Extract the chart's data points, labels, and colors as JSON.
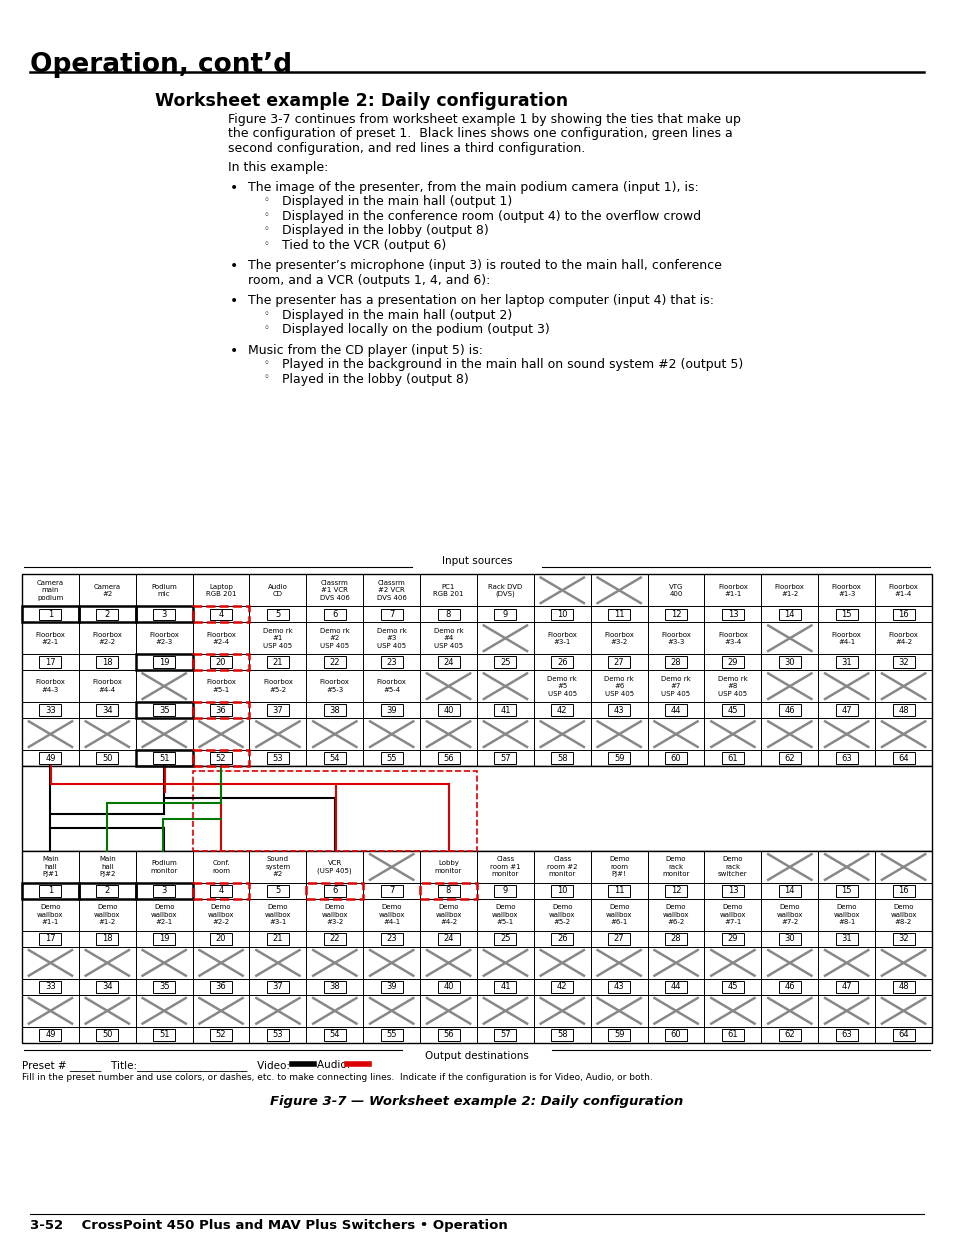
{
  "page_title": "Operation, cont’d",
  "section_title": "Worksheet example 2: Daily configuration",
  "body_lines": [
    "Figure 3-7 continues from worksheet example 1 by showing the ties that make up",
    "the configuration of preset 1.  Black lines shows one configuration, green lines a",
    "second configuration, and red lines a third configuration."
  ],
  "in_this_example": "In this example:",
  "bullets": [
    {
      "text": "The image of the presenter, from the main podium camera (input 1), is:",
      "subitems": [
        "Displayed in the main hall (output 1)",
        "Displayed in the conference room (output 4) to the overflow crowd",
        "Displayed in the lobby (output 8)",
        "Tied to the VCR (output 6)"
      ]
    },
    {
      "text": "The presenter’s microphone (input 3) is routed to the main hall, conference",
      "text2": "room, and a VCR (outputs 1, 4, and 6):",
      "subitems": []
    },
    {
      "text": "The presenter has a presentation on her laptop computer (input 4) that is:",
      "text2": null,
      "subitems": [
        "Displayed in the main hall (output 2)",
        "Displayed locally on the podium (output 3)"
      ]
    },
    {
      "text": "Music from the CD player (input 5) is:",
      "text2": null,
      "subitems": [
        "Played in the background in the main hall on sound system #2 (output 5)",
        "Played in the lobby (output 8)"
      ]
    }
  ],
  "inp_labels_r1": [
    "Camera\nmain\npodium",
    "Camera\n#2",
    "Podium\nmic",
    "Laptop\nRGB 201",
    "Audio\nCD",
    "Classrm\n#1 VCR\nDVS 406",
    "Classrm\n#2 VCR\nDVS 406",
    "PC1\nRGB 201",
    "Rack DVD\n(DVS)",
    "",
    "",
    "VTG\n400",
    "Floorbox\n#1-1",
    "Floorbox\n#1-2",
    "Floorbox\n#1-3",
    "Floorbox\n#1-4"
  ],
  "inp_labels_r2": [
    "Floorbox\n#2-1",
    "Floorbox\n#2-2",
    "Floorbox\n#2-3",
    "Floorbox\n#2-4",
    "Demo rk\n#1\nUSP 405",
    "Demo rk\n#2\nUSP 405",
    "Demo rk\n#3\nUSP 405",
    "Demo rk\n#4\nUSP 405",
    "",
    "Floorbox\n#3-1",
    "Floorbox\n#3-2",
    "Floorbox\n#3-3",
    "Floorbox\n#3-4",
    "",
    "Floorbox\n#4-1",
    "Floorbox\n#4-2"
  ],
  "inp_labels_r3": [
    "Floorbox\n#4-3",
    "Floorbox\n#4-4",
    "",
    "Floorbox\n#5-1",
    "Floorbox\n#5-2",
    "Floorbox\n#5-3",
    "Floorbox\n#5-4",
    "",
    "",
    "Demo rk\n#5\nUSP 405",
    "Demo rk\n#6\nUSP 405",
    "Demo rk\n#7\nUSP 405",
    "Demo rk\n#8\nUSP 405",
    "",
    "",
    ""
  ],
  "inp_labels_r4": [
    "",
    "",
    "",
    "",
    "",
    "",
    "",
    "",
    "",
    "",
    "",
    "",
    "",
    "",
    "",
    ""
  ],
  "out_labels_r1": [
    "Main\nhall\nPJ#1",
    "Main\nhall\nPJ#2",
    "Podium\nmonitor",
    "Conf.\nroom",
    "Sound\nsystem\n#2",
    "VCR\n(USP 405)",
    "",
    "Lobby\nmonitor",
    "Class\nroom #1\nmonitor",
    "Class\nroom #2\nmonitor",
    "Demo\nroom\nPJ#!",
    "Demo\nrack\nmonitor",
    "Demo\nrack\nswitcher",
    "",
    "",
    ""
  ],
  "out_labels_r2": [
    "Demo\nwallbox\n#1-1",
    "Demo\nwallbox\n#1-2",
    "Demo\nwallbox\n#2-1",
    "Demo\nwallbox\n#2-2",
    "Demo\nwallbox\n#3-1",
    "Demo\nwallbox\n#3-2",
    "Demo\nwallbox\n#4-1",
    "Demo\nwallbox\n#4-2",
    "Demo\nwallbox\n#5-1",
    "Demo\nwallbox\n#5-2",
    "Demo\nwallbox\n#6-1",
    "Demo\nwallbox\n#6-2",
    "Demo\nwallbox\n#7-1",
    "Demo\nwallbox\n#7-2",
    "Demo\nwallbox\n#8-1",
    "Demo\nwallbox\n#8-2"
  ],
  "out_labels_r3": [
    "",
    "",
    "",
    "",
    "",
    "",
    "",
    "",
    "",
    "",
    "",
    "",
    "",
    "",
    "",
    ""
  ],
  "out_labels_r4": [
    "",
    "",
    "",
    "",
    "",
    "",
    "",
    "",
    "",
    "",
    "",
    "",
    "",
    "",
    "",
    ""
  ],
  "figure_caption": "Figure 3-7 — Worksheet example 2: Daily configuration",
  "page_footer": "3-52    CrossPoint 450 Plus and MAV Plus Switchers • Operation"
}
